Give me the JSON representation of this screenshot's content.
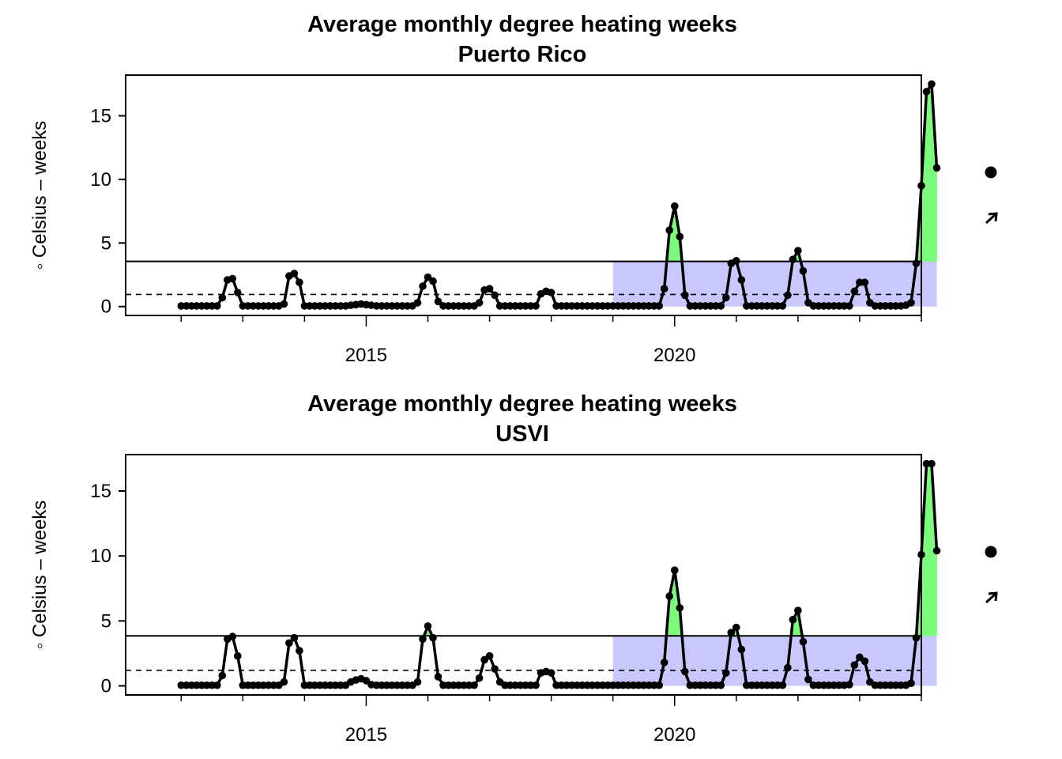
{
  "chart_data": [
    {
      "type": "line",
      "title": "Average monthly degree heating weeks",
      "subtitle": "Puerto Rico",
      "ylabel": "◦ Celsius – weeks",
      "xlabel": "",
      "xlim": [
        2011.1,
        2024.0
      ],
      "ylim": [
        -0.7,
        18.2
      ],
      "x_ticks": [
        2015,
        2020
      ],
      "y_ticks": [
        0,
        5,
        10,
        15
      ],
      "upper_threshold": 3.55,
      "lower_threshold": 0.95,
      "shaded_recent_start": 2019.0,
      "start": "2012-01",
      "values": [
        0.05,
        0.05,
        0.05,
        0.05,
        0.05,
        0.05,
        0.05,
        0.05,
        0.7,
        2.1,
        2.2,
        1.1,
        0.05,
        0.05,
        0.05,
        0.05,
        0.05,
        0.05,
        0.05,
        0.05,
        0.2,
        2.4,
        2.6,
        1.9,
        0.05,
        0.05,
        0.05,
        0.05,
        0.05,
        0.05,
        0.05,
        0.05,
        0.05,
        0.1,
        0.15,
        0.2,
        0.15,
        0.1,
        0.05,
        0.05,
        0.05,
        0.05,
        0.05,
        0.05,
        0.05,
        0.05,
        0.3,
        1.6,
        2.3,
        2.0,
        0.4,
        0.05,
        0.05,
        0.05,
        0.05,
        0.05,
        0.05,
        0.05,
        0.3,
        1.3,
        1.4,
        0.9,
        0.05,
        0.05,
        0.05,
        0.05,
        0.05,
        0.05,
        0.05,
        0.05,
        1.0,
        1.2,
        1.1,
        0.05,
        0.05,
        0.05,
        0.05,
        0.05,
        0.05,
        0.05,
        0.05,
        0.05,
        0.05,
        0.05,
        0.05,
        0.05,
        0.05,
        0.05,
        0.05,
        0.05,
        0.05,
        0.05,
        0.05,
        0.05,
        1.4,
        6.0,
        7.9,
        5.5,
        0.9,
        0.05,
        0.05,
        0.05,
        0.05,
        0.05,
        0.05,
        0.05,
        0.7,
        3.4,
        3.6,
        2.1,
        0.05,
        0.05,
        0.05,
        0.05,
        0.05,
        0.05,
        0.05,
        0.05,
        0.9,
        3.7,
        4.4,
        2.8,
        0.3,
        0.05,
        0.05,
        0.05,
        0.05,
        0.05,
        0.05,
        0.05,
        0.05,
        1.2,
        1.9,
        1.9,
        0.3,
        0.05,
        0.05,
        0.05,
        0.05,
        0.05,
        0.05,
        0.1,
        0.3,
        3.4,
        9.5,
        16.9,
        17.5,
        10.9
      ],
      "legend_markers": [
        "filled-circle-icon",
        "up-right-arrow-icon"
      ],
      "colors": {
        "line": "#000000",
        "shade": "#C8C8FF",
        "above": "#7CFC7C"
      }
    },
    {
      "type": "line",
      "title": "Average monthly degree heating weeks",
      "subtitle": "USVI",
      "ylabel": "◦ Celsius – weeks",
      "xlabel": "",
      "xlim": [
        2011.1,
        2024.0
      ],
      "ylim": [
        -0.7,
        17.8
      ],
      "x_ticks": [
        2015,
        2020
      ],
      "y_ticks": [
        0,
        5,
        10,
        15
      ],
      "upper_threshold": 3.85,
      "lower_threshold": 1.2,
      "shaded_recent_start": 2019.0,
      "start": "2012-01",
      "values": [
        0.05,
        0.05,
        0.05,
        0.05,
        0.05,
        0.05,
        0.05,
        0.05,
        0.8,
        3.6,
        3.8,
        2.3,
        0.05,
        0.05,
        0.05,
        0.05,
        0.05,
        0.05,
        0.05,
        0.05,
        0.3,
        3.3,
        3.7,
        2.7,
        0.05,
        0.05,
        0.05,
        0.05,
        0.05,
        0.05,
        0.05,
        0.05,
        0.05,
        0.3,
        0.45,
        0.55,
        0.4,
        0.1,
        0.05,
        0.05,
        0.05,
        0.05,
        0.05,
        0.05,
        0.05,
        0.05,
        0.3,
        3.6,
        4.6,
        3.7,
        0.7,
        0.05,
        0.05,
        0.05,
        0.05,
        0.05,
        0.05,
        0.05,
        0.6,
        2.0,
        2.3,
        1.3,
        0.3,
        0.05,
        0.05,
        0.05,
        0.05,
        0.05,
        0.05,
        0.05,
        1.0,
        1.1,
        1.0,
        0.05,
        0.05,
        0.05,
        0.05,
        0.05,
        0.05,
        0.05,
        0.05,
        0.05,
        0.05,
        0.05,
        0.05,
        0.05,
        0.05,
        0.05,
        0.05,
        0.05,
        0.05,
        0.05,
        0.05,
        0.05,
        1.8,
        6.9,
        8.9,
        6.0,
        1.1,
        0.05,
        0.05,
        0.05,
        0.05,
        0.05,
        0.05,
        0.05,
        1.0,
        4.1,
        4.5,
        2.8,
        0.05,
        0.05,
        0.05,
        0.05,
        0.05,
        0.05,
        0.05,
        0.05,
        1.4,
        5.1,
        5.8,
        3.4,
        0.5,
        0.05,
        0.05,
        0.05,
        0.05,
        0.05,
        0.05,
        0.05,
        0.1,
        1.6,
        2.2,
        1.9,
        0.3,
        0.05,
        0.05,
        0.05,
        0.05,
        0.05,
        0.05,
        0.05,
        0.2,
        3.7,
        10.1,
        17.1,
        17.1,
        10.4
      ],
      "legend_markers": [
        "filled-circle-icon",
        "up-right-arrow-icon"
      ],
      "colors": {
        "line": "#000000",
        "shade": "#C8C8FF",
        "above": "#7CFC7C"
      }
    }
  ]
}
